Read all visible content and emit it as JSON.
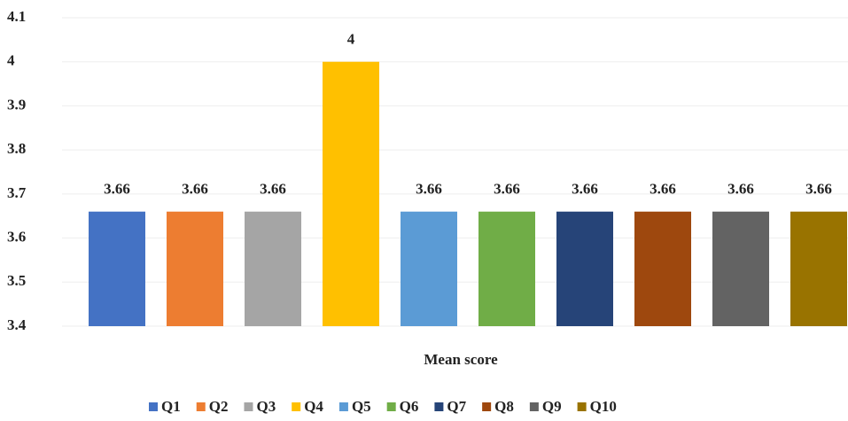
{
  "chart_data": {
    "type": "bar",
    "categories": [
      "Mean score"
    ],
    "series": [
      {
        "name": "Q1",
        "color": "#4472c4",
        "values": [
          3.66
        ]
      },
      {
        "name": "Q2",
        "color": "#ed7d31",
        "values": [
          3.66
        ]
      },
      {
        "name": "Q3",
        "color": "#a5a5a5",
        "values": [
          3.66
        ]
      },
      {
        "name": "Q4",
        "color": "#ffc000",
        "values": [
          4
        ]
      },
      {
        "name": "Q5",
        "color": "#5b9bd5",
        "values": [
          3.66
        ]
      },
      {
        "name": "Q6",
        "color": "#70ad47",
        "values": [
          3.66
        ]
      },
      {
        "name": "Q7",
        "color": "#264478",
        "values": [
          3.66
        ]
      },
      {
        "name": "Q8",
        "color": "#9e480e",
        "values": [
          3.66
        ]
      },
      {
        "name": "Q9",
        "color": "#636363",
        "values": [
          3.66
        ]
      },
      {
        "name": "Q10",
        "color": "#997300",
        "values": [
          3.66
        ]
      }
    ],
    "ylim": [
      3.4,
      4.1
    ],
    "yticks": [
      3.4,
      3.5,
      3.6,
      3.7,
      3.8,
      3.9,
      4,
      4.1
    ],
    "grid": true,
    "legend": "bottom"
  }
}
